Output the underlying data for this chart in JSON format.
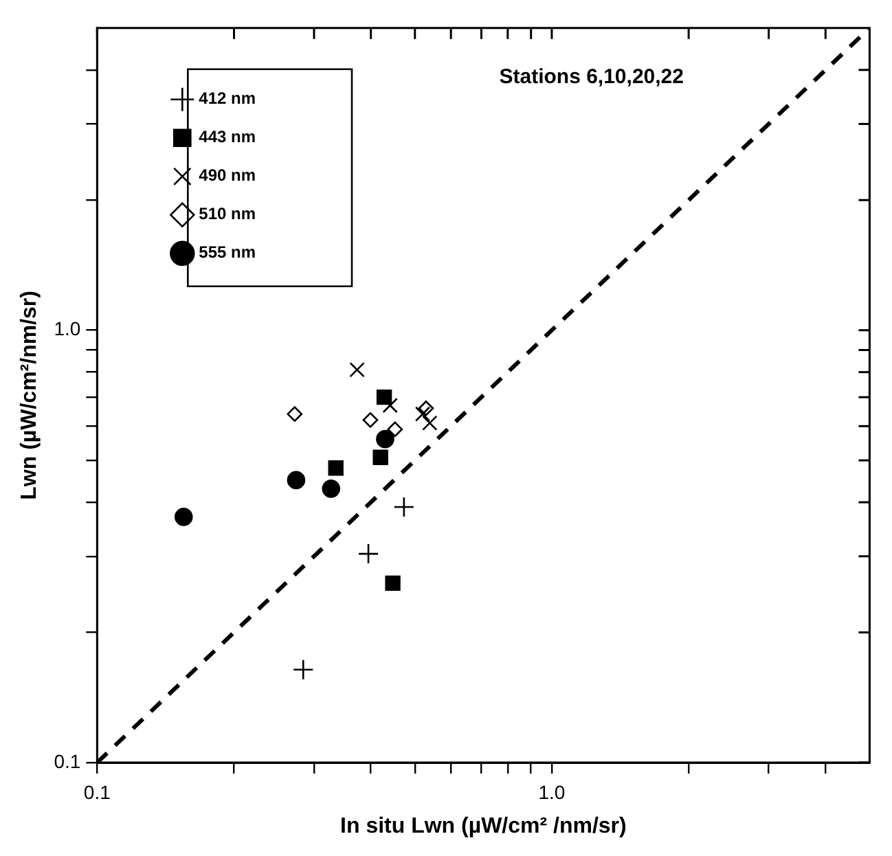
{
  "chart_data": {
    "type": "scatter",
    "title": "Stations 6,10,20,22",
    "xlabel": "In situ Lwn (µW/cm² /nm/sr)",
    "ylabel": "Lwn (µW/cm²/nm/sr)",
    "log": "xy",
    "xlim": [
      0.1,
      5
    ],
    "ylim": [
      0.1,
      5
    ],
    "xticks": [
      {
        "value": 0.1,
        "label": "0.1"
      },
      {
        "value": 0.2,
        "label": null
      },
      {
        "value": 0.3,
        "label": null
      },
      {
        "value": 0.4,
        "label": null
      },
      {
        "value": 0.5,
        "label": null
      },
      {
        "value": 0.6,
        "label": null
      },
      {
        "value": 0.7,
        "label": null
      },
      {
        "value": 0.8,
        "label": null
      },
      {
        "value": 0.9,
        "label": null
      },
      {
        "value": 1,
        "label": "1.0"
      },
      {
        "value": 2,
        "label": null
      },
      {
        "value": 3,
        "label": null
      },
      {
        "value": 4,
        "label": null
      }
    ],
    "yticks": [
      {
        "value": 0.1,
        "label": "0.1"
      },
      {
        "value": 0.2,
        "label": null
      },
      {
        "value": 0.3,
        "label": null
      },
      {
        "value": 0.4,
        "label": null
      },
      {
        "value": 0.5,
        "label": null
      },
      {
        "value": 0.6,
        "label": null
      },
      {
        "value": 0.7,
        "label": null
      },
      {
        "value": 0.8,
        "label": null
      },
      {
        "value": 0.9,
        "label": null
      },
      {
        "value": 1,
        "label": "1.0"
      },
      {
        "value": 2,
        "label": null
      },
      {
        "value": 3,
        "label": null
      },
      {
        "value": 4,
        "label": null
      }
    ],
    "grid": false,
    "legend": "top left",
    "series": [
      {
        "name": "412 nm",
        "color": "#000000",
        "marker": "plus",
        "x": [
          0.473,
          0.395,
          0.284
        ],
        "values": [
          0.39,
          0.304,
          0.164
        ]
      },
      {
        "name": "443 nm",
        "color": "#000000",
        "marker": "square",
        "x": [
          0.428,
          0.42,
          0.335,
          0.447
        ],
        "values": [
          0.7,
          0.508,
          0.48,
          0.26
        ]
      },
      {
        "name": "490 nm",
        "color": "#000000",
        "marker": "cross",
        "x": [
          0.373,
          0.441,
          0.52,
          0.539
        ],
        "values": [
          0.81,
          0.67,
          0.64,
          0.61
        ]
      },
      {
        "name": "510 nm",
        "color": "#000000",
        "marker": "diamond",
        "x": [
          0.272,
          0.399,
          0.452,
          0.529
        ],
        "values": [
          0.64,
          0.62,
          0.59,
          0.66
        ]
      },
      {
        "name": "555 nm",
        "color": "#000000",
        "marker": "circle",
        "x": [
          0.43,
          0.274,
          0.327,
          0.155
        ],
        "values": [
          0.56,
          0.45,
          0.43,
          0.37
        ]
      },
      {
        "type": "line",
        "color": "#000000",
        "line_style": "dashed",
        "marker": "none",
        "x": [
          0.1,
          5
        ],
        "values": [
          0.1,
          5
        ]
      }
    ]
  }
}
